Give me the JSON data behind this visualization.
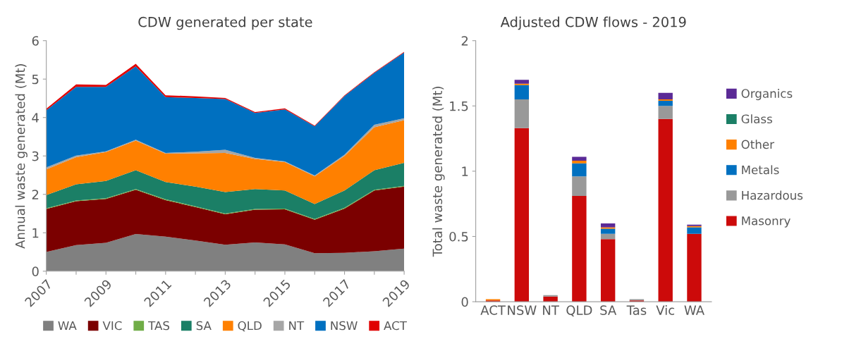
{
  "chart_data": [
    {
      "type": "area",
      "stacked": true,
      "title": "CDW generated per state",
      "ylabel": "Annual waste generated (Mt)",
      "x": [
        2007,
        2008,
        2009,
        2010,
        2011,
        2012,
        2013,
        2014,
        2015,
        2016,
        2017,
        2018,
        2019
      ],
      "xlim": [
        2007,
        2019
      ],
      "xticks": [
        2007,
        {
          "value": 2008,
          "label": null
        },
        2009,
        {
          "value": 2010,
          "label": null
        },
        2011,
        {
          "value": 2012,
          "label": null
        },
        2013,
        {
          "value": 2014,
          "label": null
        },
        2015,
        {
          "value": 2016,
          "label": null
        },
        2017,
        {
          "value": 2018,
          "label": null
        },
        2019
      ],
      "ylim": [
        0,
        6
      ],
      "yticks": [
        0,
        1,
        2,
        3,
        4,
        5,
        6
      ],
      "grid": false,
      "legend": "bottom",
      "series": [
        {
          "name": "WA",
          "color": "#808080",
          "values": [
            0.5,
            0.68,
            0.74,
            0.97,
            0.9,
            0.8,
            0.69,
            0.75,
            0.7,
            0.47,
            0.48,
            0.52,
            0.59
          ]
        },
        {
          "name": "VIC",
          "color": "#7b0000",
          "values": [
            1.12,
            1.14,
            1.14,
            1.15,
            0.95,
            0.87,
            0.79,
            0.85,
            0.91,
            0.87,
            1.15,
            1.58,
            1.61
          ]
        },
        {
          "name": "TAS",
          "color": "#70ad47",
          "values": [
            0.02,
            0.02,
            0.02,
            0.02,
            0.02,
            0.02,
            0.02,
            0.02,
            0.02,
            0.02,
            0.02,
            0.02,
            0.02
          ]
        },
        {
          "name": "SA",
          "color": "#1b7f66",
          "values": [
            0.34,
            0.42,
            0.45,
            0.49,
            0.45,
            0.51,
            0.56,
            0.52,
            0.47,
            0.39,
            0.45,
            0.51,
            0.6
          ]
        },
        {
          "name": "QLD",
          "color": "#ff8000",
          "values": [
            0.67,
            0.71,
            0.75,
            0.77,
            0.74,
            0.87,
            1.02,
            0.78,
            0.74,
            0.72,
            0.9,
            1.12,
            1.11
          ]
        },
        {
          "name": "NT",
          "color": "#a6a6a6",
          "values": [
            0.05,
            0.04,
            0.02,
            0.02,
            0.02,
            0.04,
            0.08,
            0.03,
            0.02,
            0.02,
            0.03,
            0.06,
            0.05
          ]
        },
        {
          "name": "NSW",
          "color": "#0070c0",
          "values": [
            1.49,
            1.79,
            1.68,
            1.91,
            1.45,
            1.4,
            1.32,
            1.17,
            1.35,
            1.28,
            1.53,
            1.35,
            1.71
          ]
        },
        {
          "name": "ACT",
          "color": "#e00000",
          "values": [
            0.04,
            0.06,
            0.05,
            0.07,
            0.05,
            0.04,
            0.03,
            0.02,
            0.03,
            0.02,
            0.02,
            0.02,
            0.02
          ]
        }
      ]
    },
    {
      "type": "bar",
      "stacked": true,
      "title": "Adjusted CDW flows - 2019",
      "ylabel": "Total waste generated (Mt)",
      "categories": [
        "ACT",
        "NSW",
        "NT",
        "QLD",
        "SA",
        "Tas",
        "Vic",
        "WA"
      ],
      "ylim": [
        0,
        2
      ],
      "yticks": [
        0,
        0.5,
        1,
        1.5,
        2
      ],
      "grid": false,
      "legend": "right",
      "series": [
        {
          "name": "Masonry",
          "color": "#cc0a0a",
          "values": [
            0.01,
            1.33,
            0.04,
            0.81,
            0.48,
            0.01,
            1.4,
            0.52
          ]
        },
        {
          "name": "Hazardous",
          "color": "#999999",
          "values": [
            0,
            0.22,
            0.01,
            0.15,
            0.04,
            0.01,
            0.1,
            0
          ]
        },
        {
          "name": "Metals",
          "color": "#0070c0",
          "values": [
            0,
            0.11,
            0,
            0.1,
            0.04,
            0,
            0.04,
            0.05
          ]
        },
        {
          "name": "Other",
          "color": "#ff8000",
          "values": [
            0.01,
            0.01,
            0,
            0.02,
            0.01,
            0,
            0.01,
            0.01
          ]
        },
        {
          "name": "Glass",
          "color": "#1b7f66",
          "values": [
            0,
            0,
            0,
            0,
            0,
            0,
            0,
            0
          ]
        },
        {
          "name": "Organics",
          "color": "#5b2a96",
          "values": [
            0,
            0.03,
            0,
            0.03,
            0.03,
            0,
            0.05,
            0.01
          ]
        }
      ]
    }
  ]
}
